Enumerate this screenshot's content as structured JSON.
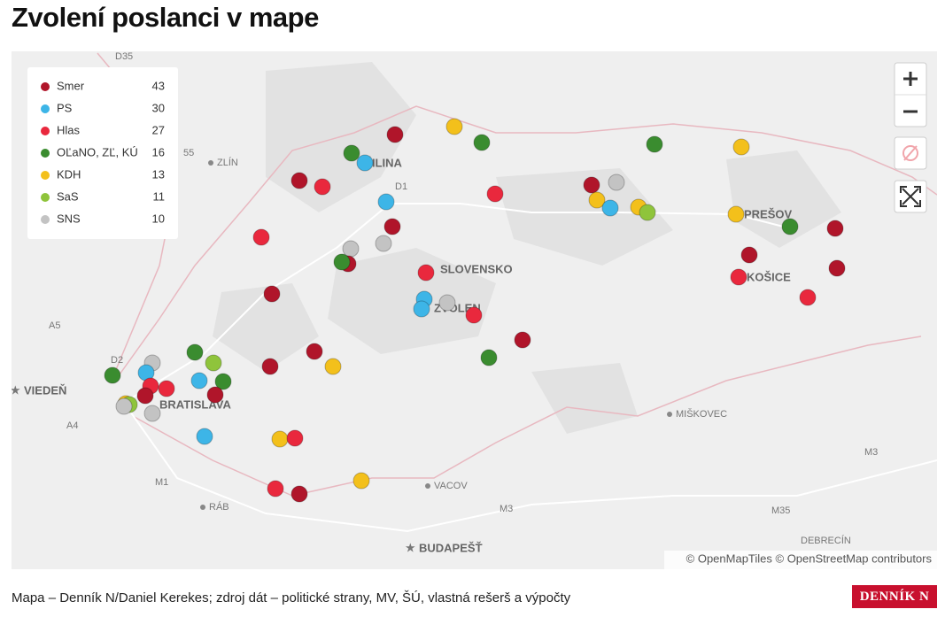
{
  "header": {
    "title": "Zvolení poslanci v mape"
  },
  "legend": [
    {
      "name": "Smer",
      "count": "43",
      "color": "#b0152a"
    },
    {
      "name": "PS",
      "count": "30",
      "color": "#3db5e7"
    },
    {
      "name": "Hlas",
      "count": "27",
      "color": "#e9283d"
    },
    {
      "name": "OĽaNO, ZĽ, KÚ",
      "count": "16",
      "color": "#3a8c2f"
    },
    {
      "name": "KDH",
      "count": "13",
      "color": "#f3c01b"
    },
    {
      "name": "SaS",
      "count": "11",
      "color": "#8fc43b"
    },
    {
      "name": "SNS",
      "count": "10",
      "color": "#c3c3c3"
    }
  ],
  "map_labels": [
    "D35",
    "ZLÍN",
    "ŽILINA",
    "D1",
    "55",
    "SLOVENSKO",
    "ZVOLEN",
    "PREŠOV",
    "KOŠICE",
    "VIEDEŇ",
    "BRATISLAVA",
    "A5",
    "D2",
    "A4",
    "M1",
    "RÁB",
    "VACOV",
    "M3",
    "M3",
    "M35",
    "MIŠKOVEC",
    "DEBRECÍN",
    "BUDAPEŠŤ"
  ],
  "attribution": "© OpenMapTiles © OpenStreetMap contributors",
  "footer": {
    "credit": "Mapa – Denník N/Daniel Kerekes; zdroj dát – politické strany, MV, ŠÚ, vlastná rešerš a výpočty",
    "logo": "DENNÍK N"
  }
}
